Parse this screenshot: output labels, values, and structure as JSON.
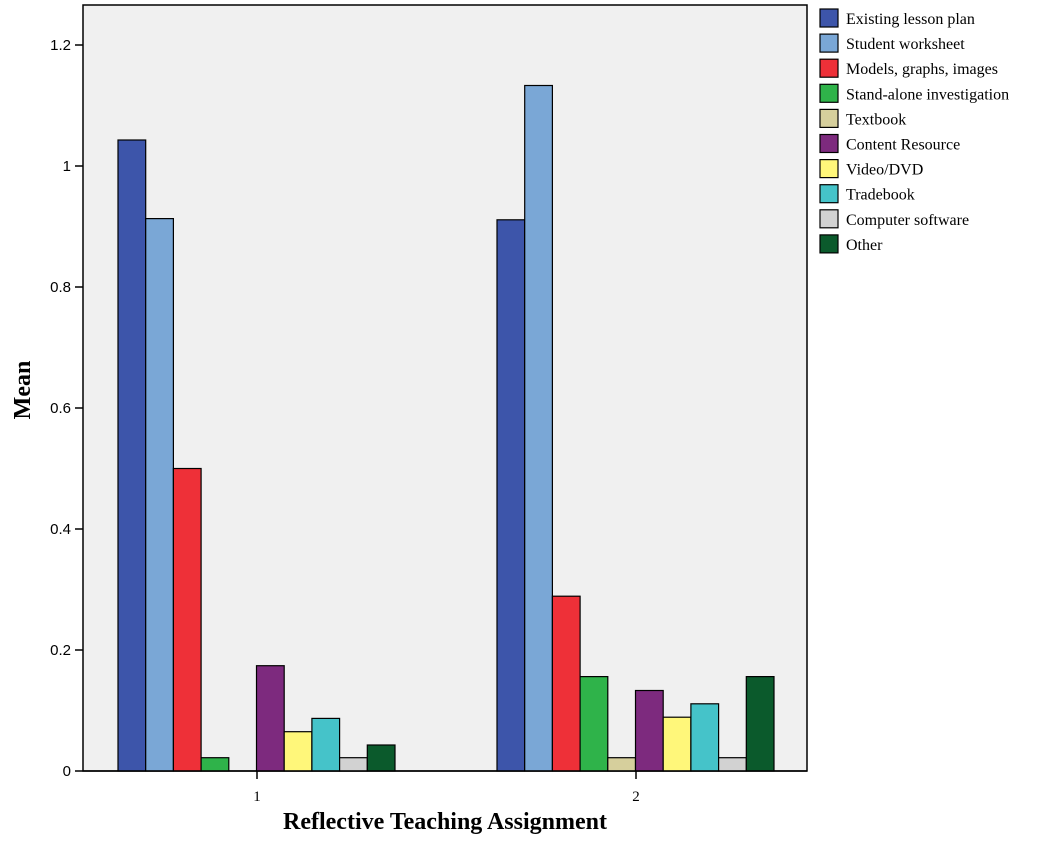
{
  "chart_data": {
    "type": "bar",
    "xlabel": "Reflective Teaching Assignment",
    "ylabel": "Mean",
    "ylim": [
      0,
      1.25
    ],
    "yticks": [
      0,
      0.2,
      0.4,
      0.6,
      0.8,
      1,
      1.2
    ],
    "ytick_labels": [
      "0",
      "0.2",
      "0.4",
      "0.6",
      "0.8",
      "1",
      "1.2"
    ],
    "categories": [
      "1",
      "2"
    ],
    "legend_position": "right",
    "grid": false,
    "series": [
      {
        "name": "Existing lesson plan",
        "color": "#3d55aa",
        "values": [
          1.043,
          0.911
        ]
      },
      {
        "name": "Student worksheet",
        "color": "#7aa7d6",
        "values": [
          0.913,
          1.133
        ]
      },
      {
        "name": "Models, graphs, images",
        "color": "#ee3038",
        "values": [
          0.5,
          0.289
        ]
      },
      {
        "name": "Stand-alone investigation",
        "color": "#2fb34a",
        "values": [
          0.022,
          0.156
        ]
      },
      {
        "name": "Textbook",
        "color": "#d6cf9c",
        "values": [
          0.0,
          0.022
        ]
      },
      {
        "name": "Content Resource",
        "color": "#7d2a7e",
        "values": [
          0.174,
          0.133
        ]
      },
      {
        "name": "Video/DVD",
        "color": "#fff77a",
        "values": [
          0.065,
          0.089
        ]
      },
      {
        "name": "Tradebook",
        "color": "#45c3c9",
        "values": [
          0.087,
          0.111
        ]
      },
      {
        "name": "Computer software",
        "color": "#d2d2d2",
        "values": [
          0.022,
          0.022
        ]
      },
      {
        "name": "Other",
        "color": "#0b5a2c",
        "values": [
          0.043,
          0.156
        ]
      }
    ]
  },
  "colors": {
    "plot_background": "#f0f0f0",
    "axis": "#000000"
  }
}
